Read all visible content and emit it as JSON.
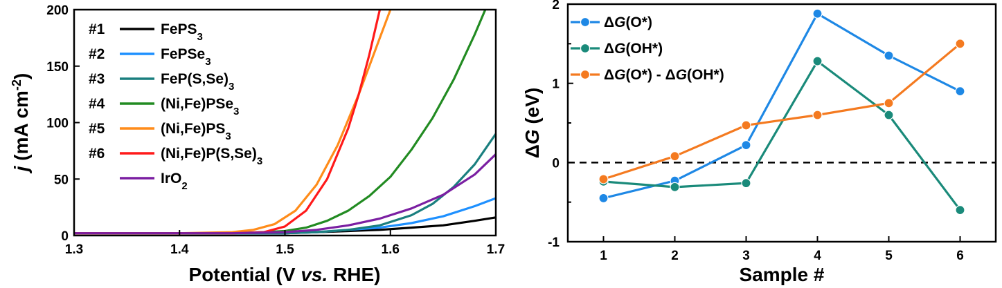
{
  "chart_data": [
    {
      "type": "line",
      "xlabel_parts": [
        "Potential (V ",
        "vs.",
        " RHE)"
      ],
      "ylabel_parts": [
        "j",
        " (mA cm",
        "-2",
        ")"
      ],
      "xlim": [
        1.3,
        1.7
      ],
      "ylim": [
        0,
        200
      ],
      "xticks": [
        "1.3",
        "1.4",
        "1.5",
        "1.6",
        "1.7"
      ],
      "yticks": [
        "0",
        "50",
        "100",
        "150",
        "200"
      ],
      "legend_position": "top-left",
      "series": [
        {
          "num": "#1",
          "label_parts": [
            "FePS",
            "3",
            ""
          ],
          "color": "#000000",
          "x": [
            1.3,
            1.35,
            1.4,
            1.45,
            1.5,
            1.53,
            1.56,
            1.59,
            1.62,
            1.65,
            1.68,
            1.7
          ],
          "y": [
            2,
            2,
            2,
            2,
            2,
            3,
            4,
            5,
            7,
            9,
            13,
            16
          ]
        },
        {
          "num": "#2",
          "label_parts": [
            "FePSe",
            "3",
            ""
          ],
          "color": "#1e90ff",
          "x": [
            1.3,
            1.35,
            1.4,
            1.45,
            1.5,
            1.53,
            1.56,
            1.59,
            1.62,
            1.65,
            1.68,
            1.7
          ],
          "y": [
            2,
            2,
            2,
            2,
            2,
            3,
            5,
            7,
            11,
            17,
            26,
            33
          ]
        },
        {
          "num": "#3",
          "label_parts": [
            "FeP(S,Se)",
            "3",
            ""
          ],
          "color": "#1a7f7f",
          "x": [
            1.3,
            1.35,
            1.4,
            1.45,
            1.5,
            1.53,
            1.56,
            1.59,
            1.62,
            1.64,
            1.66,
            1.68,
            1.7
          ],
          "y": [
            2,
            2,
            2,
            2,
            2,
            3,
            5,
            9,
            18,
            28,
            43,
            63,
            90
          ]
        },
        {
          "num": "#4",
          "label_parts": [
            "(Ni,Fe)PSe",
            "3",
            ""
          ],
          "color": "#228b22",
          "x": [
            1.3,
            1.4,
            1.45,
            1.48,
            1.5,
            1.52,
            1.54,
            1.56,
            1.58,
            1.6,
            1.62,
            1.64,
            1.66,
            1.68,
            1.69
          ],
          "y": [
            2,
            2,
            2,
            3,
            4,
            7,
            13,
            22,
            35,
            52,
            76,
            104,
            138,
            178,
            200
          ]
        },
        {
          "num": "#5",
          "label_parts": [
            "(Ni,Fe)PS",
            "3",
            ""
          ],
          "color": "#ff8c1a",
          "x": [
            1.3,
            1.4,
            1.45,
            1.47,
            1.49,
            1.51,
            1.53,
            1.55,
            1.57,
            1.58,
            1.59,
            1.6
          ],
          "y": [
            2,
            2,
            3,
            5,
            10,
            22,
            45,
            80,
            125,
            150,
            175,
            200
          ]
        },
        {
          "num": "#6",
          "label_parts": [
            "(Ni,Fe)P(S,Se)",
            "3",
            ""
          ],
          "color": "#ff1a1a",
          "x": [
            1.3,
            1.4,
            1.45,
            1.48,
            1.5,
            1.52,
            1.54,
            1.56,
            1.57,
            1.58,
            1.59
          ],
          "y": [
            2,
            2,
            2,
            3,
            8,
            22,
            50,
            95,
            125,
            160,
            200
          ]
        },
        {
          "num": "",
          "label_parts": [
            "IrO",
            "2",
            ""
          ],
          "color": "#7b1fa2",
          "x": [
            1.3,
            1.35,
            1.4,
            1.45,
            1.5,
            1.53,
            1.56,
            1.59,
            1.62,
            1.65,
            1.68,
            1.7
          ],
          "y": [
            2,
            2,
            2,
            2,
            3,
            5,
            9,
            15,
            24,
            36,
            54,
            72
          ]
        }
      ]
    },
    {
      "type": "line",
      "xlabel": "Sample #",
      "ylabel_parts": [
        "Δ",
        "G",
        " (eV)"
      ],
      "xlim": [
        0.5,
        6.5
      ],
      "ylim": [
        -1,
        2
      ],
      "xticks": [
        "1",
        "2",
        "3",
        "4",
        "5",
        "6"
      ],
      "yticks": [
        "-1",
        "0",
        "1",
        "2"
      ],
      "zero_line": true,
      "legend_position": "top-left",
      "x": [
        1,
        2,
        3,
        4,
        5,
        6
      ],
      "series": [
        {
          "label_parts": [
            "Δ",
            "G",
            "(O*)"
          ],
          "color": "#1e88e5",
          "y": [
            -0.45,
            -0.23,
            0.22,
            1.88,
            1.35,
            0.9
          ]
        },
        {
          "label_parts": [
            "Δ",
            "G",
            "(OH*)"
          ],
          "color": "#1a8a7a",
          "y": [
            -0.24,
            -0.31,
            -0.26,
            1.28,
            0.6,
            -0.6
          ]
        },
        {
          "label_parts": [
            "Δ",
            "G",
            "(O*) - ",
            "Δ",
            "G",
            "(OH*)"
          ],
          "color": "#f47a20",
          "y": [
            -0.21,
            0.08,
            0.47,
            0.6,
            0.75,
            1.5
          ]
        }
      ]
    }
  ]
}
